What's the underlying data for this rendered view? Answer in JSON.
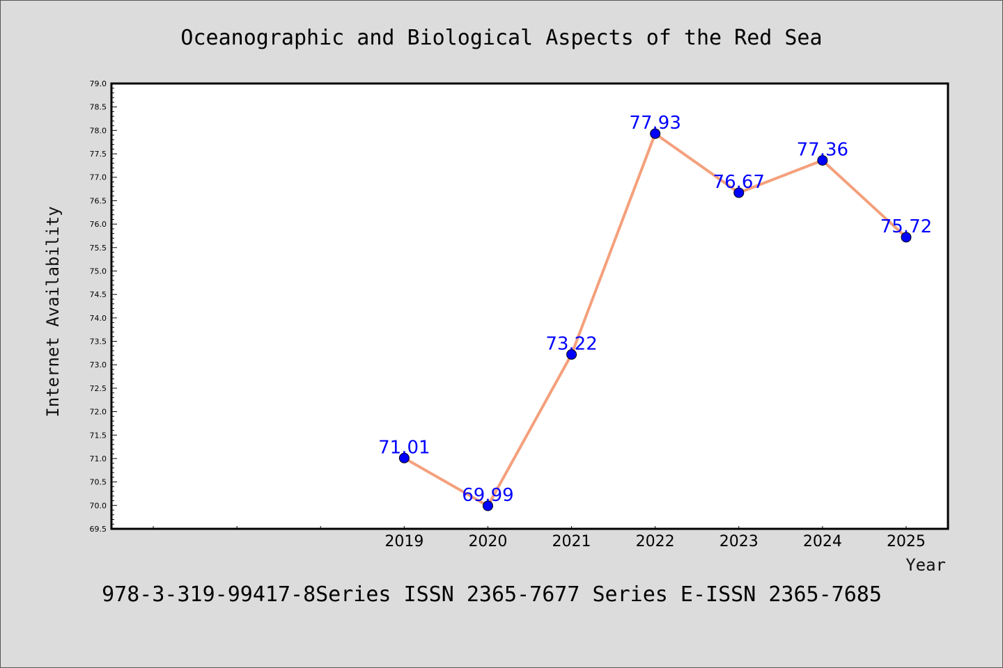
{
  "chart_data": {
    "type": "line",
    "title": "Oceanographic and Biological Aspects of the Red Sea",
    "xlabel": "Year",
    "ylabel": "Internet Availability",
    "x": [
      "2019",
      "2020",
      "2021",
      "2022",
      "2023",
      "2024",
      "2025"
    ],
    "series": [
      {
        "values": [
          71.01,
          69.99,
          73.22,
          77.93,
          76.67,
          77.36,
          75.72
        ],
        "data_labels": [
          "71.01",
          "69.99",
          "73.22",
          "77.93",
          "76.67",
          "77.36",
          "75.72"
        ]
      }
    ],
    "ylim": [
      69.5,
      79.0
    ],
    "yticks": [
      "69.5",
      "70.0",
      "70.5",
      "71.0",
      "71.5",
      "72.0",
      "72.5",
      "73.0",
      "73.5",
      "74.0",
      "74.5",
      "75.0",
      "75.5",
      "76.0",
      "76.5",
      "77.0",
      "77.5",
      "78.0",
      "78.5",
      "79.0"
    ],
    "grid": false,
    "line_color": "#f4a07c",
    "marker_color": "#0000ff",
    "label_color": "#0000ff"
  },
  "footer": "978-3-319-99417-8Series ISSN 2365-7677 Series E-ISSN 2365-7685"
}
